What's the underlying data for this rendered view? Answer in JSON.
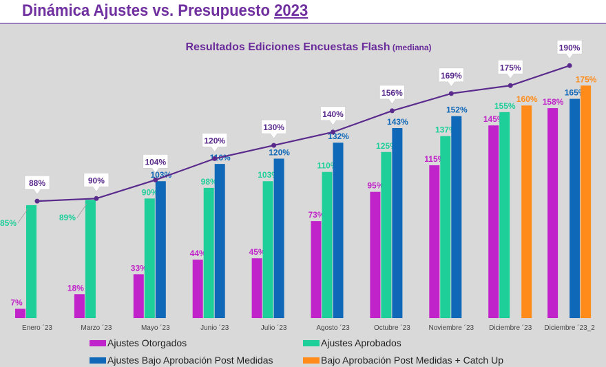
{
  "header": {
    "title": "Dinámica Ajustes vs. Presupuesto",
    "year": "2023"
  },
  "chart_data": {
    "type": "bar",
    "title": "Resultados Ediciones Encuestas Flash",
    "subtitle": "(mediana)",
    "categories": [
      "Enero ´23",
      "Marzo ´23",
      "Mayo ´23",
      "Junio ´23",
      "Julio ´23",
      "Agosto ´23",
      "Octubre ´23",
      "Noviembre ´23",
      "Diciembre ´23",
      "Diciembre ´23_2"
    ],
    "series": [
      {
        "name": "Ajustes Otorgados",
        "color": "#c023c9",
        "values": [
          7,
          18,
          33,
          44,
          45,
          73,
          95,
          115,
          145,
          158
        ]
      },
      {
        "name": "Ajustes Aprobados",
        "color": "#1fcf9a",
        "values": [
          85,
          89,
          90,
          98,
          103,
          110,
          125,
          137,
          155,
          null
        ]
      },
      {
        "name": "Ajustes Bajo Aprobación Post Medidas",
        "color": "#1068b8",
        "values": [
          null,
          null,
          103,
          116,
          120,
          132,
          143,
          152,
          null,
          165
        ]
      },
      {
        "name": "Bajo Aprobación Post Medidas + Catch Up",
        "color": "#ff8c1a",
        "values": [
          null,
          null,
          null,
          null,
          null,
          null,
          null,
          null,
          160,
          175
        ]
      }
    ],
    "line": {
      "type": "line",
      "color": "#5a2a8c",
      "values": [
        88,
        90,
        104,
        120,
        130,
        140,
        156,
        169,
        175,
        190
      ]
    },
    "unit": "%",
    "ylim": [
      0,
      200
    ],
    "grid": false,
    "legend_position": "bottom"
  }
}
